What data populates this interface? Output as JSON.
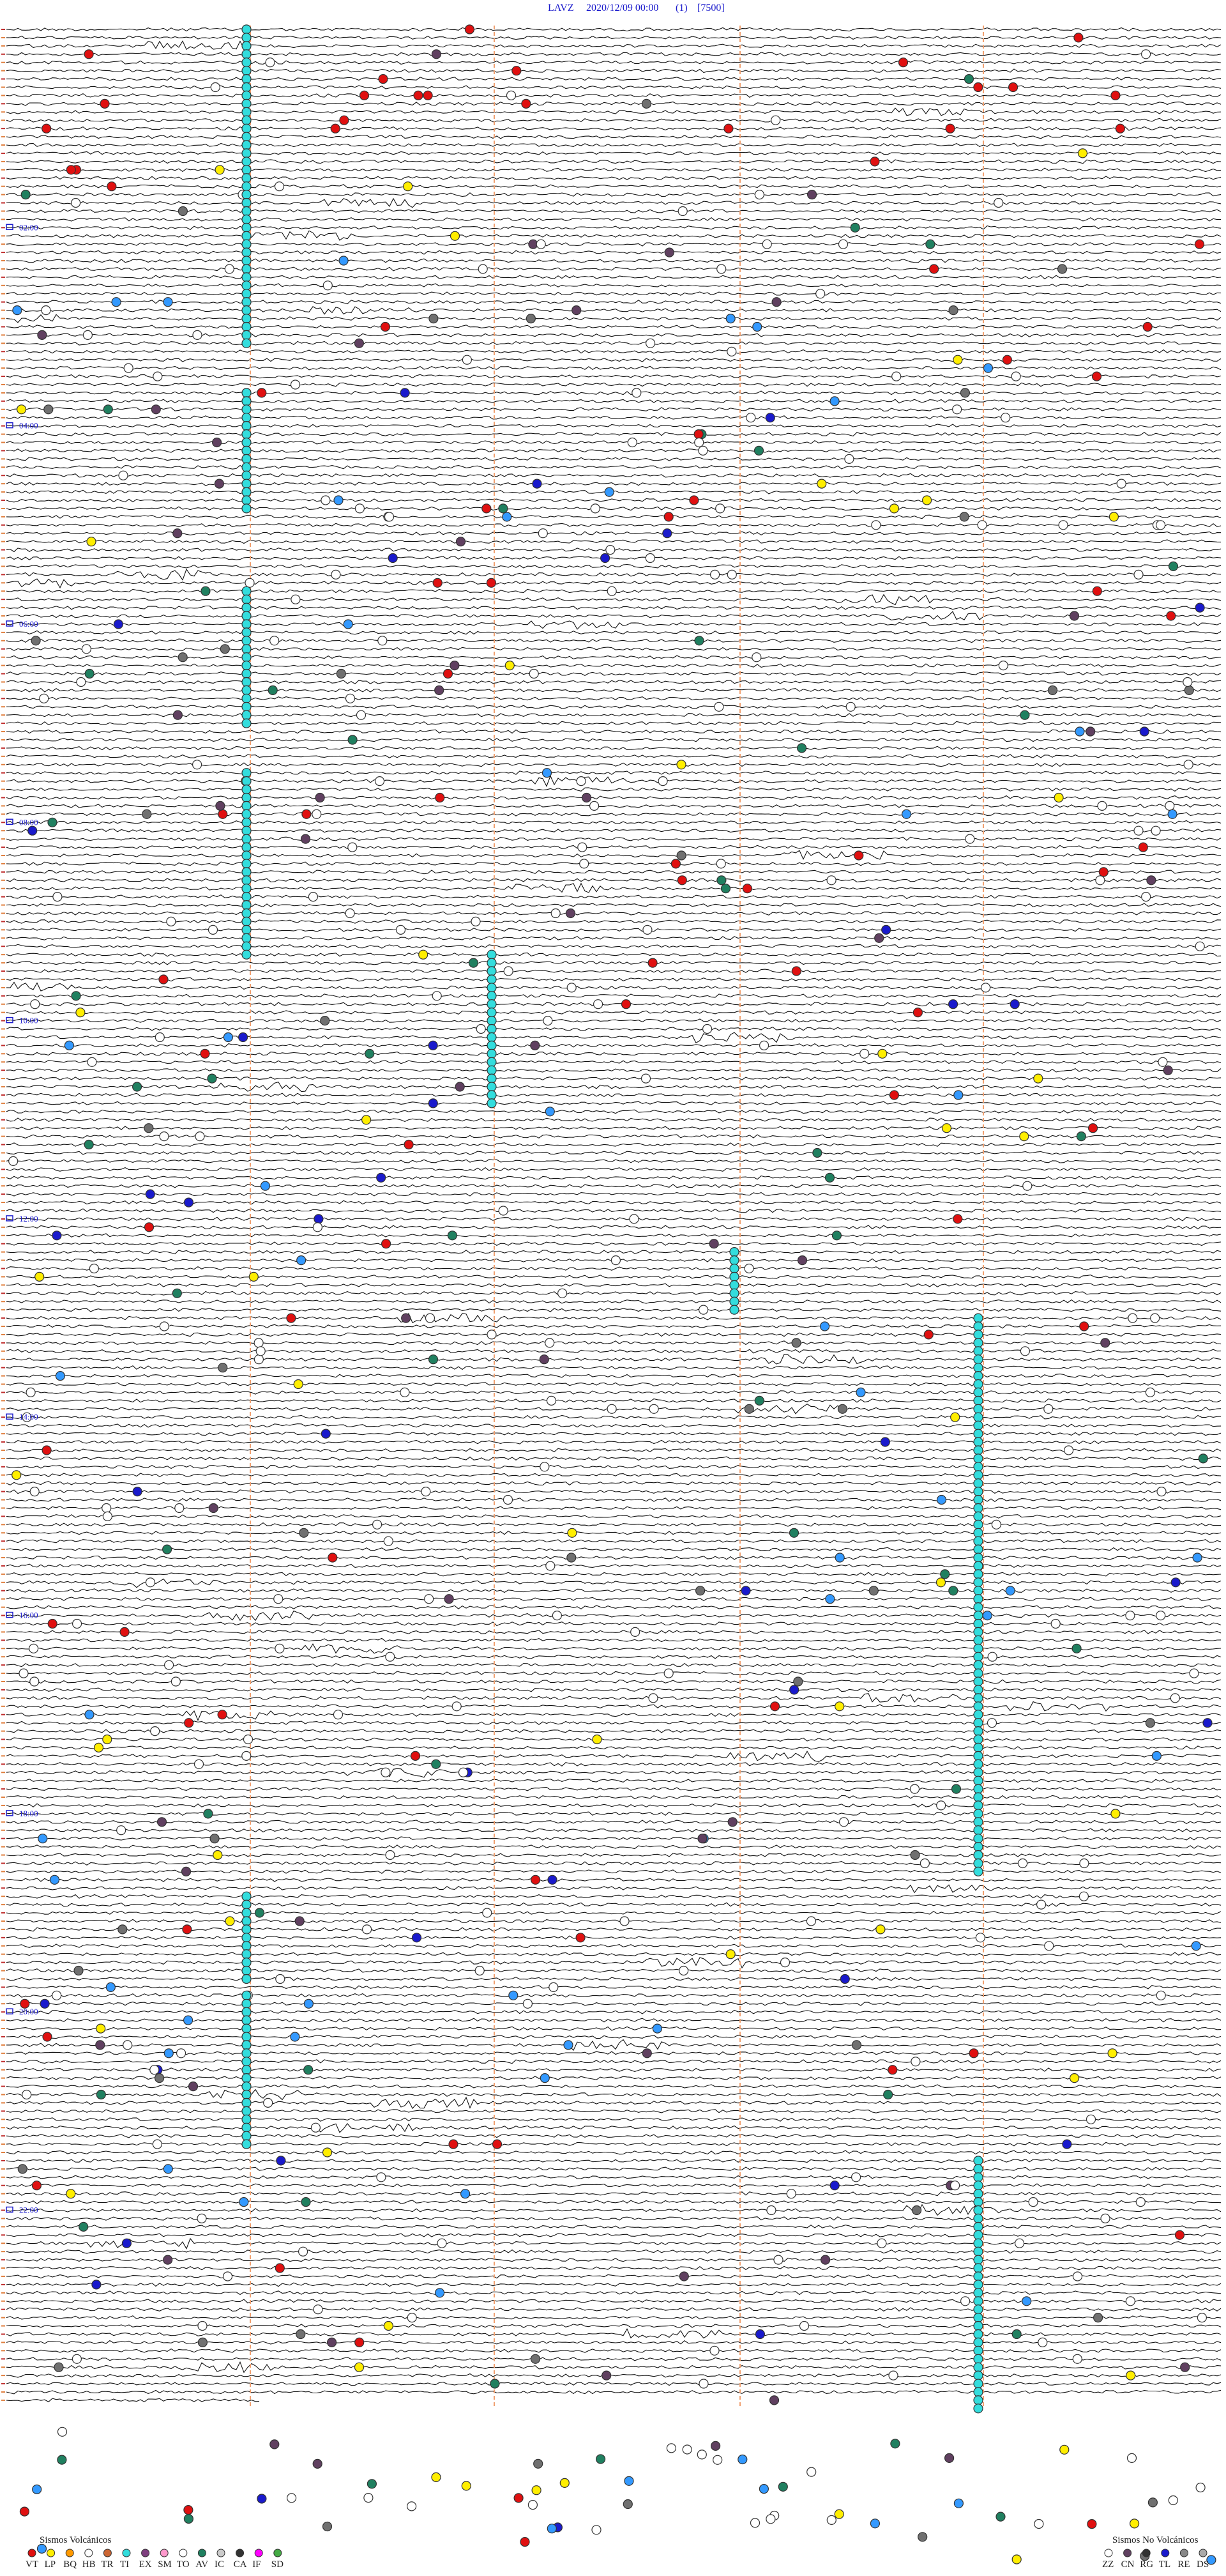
{
  "header": {
    "station": "LAVZ",
    "datetime": "2020/12/09 00:00",
    "channel": "(1)",
    "scale": "[7500]"
  },
  "hour_labels": [
    "02:00",
    "04:00",
    "06:00",
    "08:00",
    "10:00",
    "12:00",
    "14:00",
    "16:00",
    "18:00",
    "20:00",
    "22:00"
  ],
  "legend": {
    "volcanic": {
      "title": "Sismos Volcánicos",
      "codes": [
        "VT",
        "LP",
        "BQ",
        "HB",
        "TR",
        "TI",
        "EX",
        "SM",
        "TO",
        "AV",
        "IC",
        "CA",
        "IF",
        "SD"
      ]
    },
    "non_volcanic": {
      "title": "Sismos No Volcánicos",
      "codes": [
        "ZZ",
        "CN",
        "RG",
        "TL",
        "RE",
        "DS"
      ]
    }
  }
}
